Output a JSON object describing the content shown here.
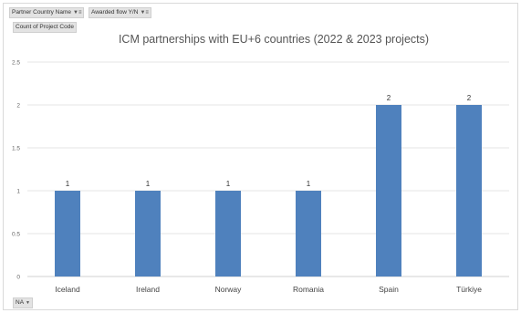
{
  "field_buttons": {
    "filter1": "Partner Country Name",
    "filter2": "Awarded flow Y/N",
    "value_field": "Count of Project Code",
    "axis_field": "NA"
  },
  "icons": {
    "filter": "filter-dropdown-icon",
    "dropdown": "chevron-down-icon"
  },
  "chart_data": {
    "type": "bar",
    "title": "ICM partnerships with EU+6 countries (2022 & 2023 projects)",
    "xlabel": "",
    "ylabel": "",
    "categories": [
      "Iceland",
      "Ireland",
      "Norway",
      "Romania",
      "Spain",
      "Türkiye"
    ],
    "values": [
      1,
      1,
      1,
      1,
      2,
      2
    ],
    "ylim": [
      0,
      2.5
    ],
    "yticks": [
      0,
      0.5,
      1,
      1.5,
      2,
      2.5
    ],
    "ytick_labels": [
      "0",
      "0.5",
      "1",
      "1.5",
      "2",
      "2.5"
    ],
    "data_labels": [
      "1",
      "1",
      "1",
      "1",
      "2",
      "2"
    ],
    "grid": true,
    "legend": "none",
    "bar_color": "#4f81bd"
  }
}
